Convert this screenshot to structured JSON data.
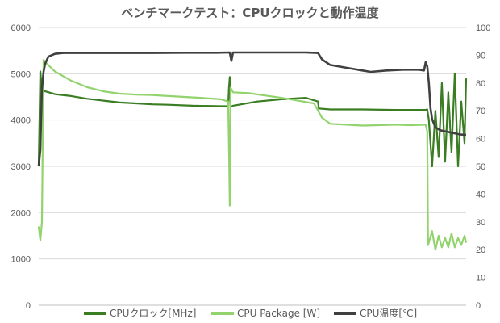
{
  "chart_data": {
    "type": "line",
    "title": "ベンチマークテスト：CPUクロックと動作温度",
    "y_left": {
      "lim": [
        0,
        6000
      ],
      "ticks": [
        "0",
        "1000",
        "2000",
        "3000",
        "4000",
        "5000",
        "6000"
      ]
    },
    "y_right": {
      "lim": [
        0,
        100
      ],
      "ticks": [
        "0",
        "10",
        "20",
        "30",
        "40",
        "50",
        "60",
        "70",
        "80",
        "90",
        "100"
      ]
    },
    "grid": true,
    "legend_position": "bottom",
    "series": [
      {
        "name": "CPUクロック[MHz]",
        "axis": "left",
        "color": "#3a7d22",
        "points": [
          [
            0,
            3000
          ],
          [
            2,
            5050
          ],
          [
            4,
            4650
          ],
          [
            8,
            4620
          ],
          [
            20,
            4560
          ],
          [
            40,
            4520
          ],
          [
            60,
            4460
          ],
          [
            80,
            4420
          ],
          [
            100,
            4380
          ],
          [
            120,
            4360
          ],
          [
            140,
            4340
          ],
          [
            160,
            4330
          ],
          [
            190,
            4310
          ],
          [
            225,
            4300
          ],
          [
            234,
            4300
          ],
          [
            235,
            4700
          ],
          [
            236,
            4930
          ],
          [
            237,
            4280
          ],
          [
            240,
            4310
          ],
          [
            270,
            4400
          ],
          [
            300,
            4450
          ],
          [
            330,
            4480
          ],
          [
            345,
            4400
          ],
          [
            346,
            4250
          ],
          [
            360,
            4230
          ],
          [
            400,
            4230
          ],
          [
            440,
            4220
          ],
          [
            478,
            4220
          ],
          [
            480,
            4230
          ],
          [
            482,
            4000
          ],
          [
            486,
            3000
          ],
          [
            490,
            4200
          ],
          [
            494,
            3200
          ],
          [
            498,
            4800
          ],
          [
            502,
            3100
          ],
          [
            506,
            4600
          ],
          [
            510,
            3300
          ],
          [
            514,
            5000
          ],
          [
            518,
            3000
          ],
          [
            522,
            4400
          ],
          [
            526,
            3500
          ],
          [
            528,
            4900
          ]
        ]
      },
      {
        "name": "CPU Package [W]",
        "axis": "left",
        "color": "#92d36e",
        "points": [
          [
            0,
            1700
          ],
          [
            2,
            1400
          ],
          [
            4,
            1800
          ],
          [
            6,
            5300
          ],
          [
            10,
            5220
          ],
          [
            20,
            5050
          ],
          [
            40,
            4850
          ],
          [
            60,
            4710
          ],
          [
            80,
            4620
          ],
          [
            100,
            4570
          ],
          [
            120,
            4550
          ],
          [
            140,
            4540
          ],
          [
            160,
            4520
          ],
          [
            180,
            4500
          ],
          [
            200,
            4480
          ],
          [
            225,
            4450
          ],
          [
            234,
            4400
          ],
          [
            235,
            3400
          ],
          [
            236,
            2150
          ],
          [
            237,
            4700
          ],
          [
            240,
            4600
          ],
          [
            260,
            4580
          ],
          [
            280,
            4530
          ],
          [
            300,
            4480
          ],
          [
            320,
            4420
          ],
          [
            340,
            4360
          ],
          [
            350,
            4050
          ],
          [
            360,
            3920
          ],
          [
            380,
            3900
          ],
          [
            400,
            3880
          ],
          [
            420,
            3890
          ],
          [
            440,
            3900
          ],
          [
            460,
            3890
          ],
          [
            478,
            3900
          ],
          [
            480,
            3750
          ],
          [
            481,
            1300
          ],
          [
            486,
            1600
          ],
          [
            490,
            1200
          ],
          [
            494,
            1500
          ],
          [
            498,
            1250
          ],
          [
            502,
            1450
          ],
          [
            506,
            1250
          ],
          [
            510,
            1550
          ],
          [
            514,
            1250
          ],
          [
            518,
            1450
          ],
          [
            522,
            1300
          ],
          [
            526,
            1500
          ],
          [
            528,
            1350
          ]
        ]
      },
      {
        "name": "CPU温度[℃]",
        "axis": "right",
        "color": "#404040",
        "points": [
          [
            0,
            50
          ],
          [
            2,
            56
          ],
          [
            4,
            78
          ],
          [
            6,
            84
          ],
          [
            8,
            87
          ],
          [
            12,
            89.5
          ],
          [
            20,
            90.5
          ],
          [
            30,
            90.8
          ],
          [
            60,
            90.8
          ],
          [
            100,
            90.8
          ],
          [
            140,
            90.8
          ],
          [
            180,
            90.9
          ],
          [
            220,
            90.9
          ],
          [
            236,
            91
          ],
          [
            238,
            88
          ],
          [
            240,
            91
          ],
          [
            280,
            91
          ],
          [
            300,
            91
          ],
          [
            330,
            91
          ],
          [
            345,
            90.8
          ],
          [
            350,
            88.5
          ],
          [
            360,
            86.5
          ],
          [
            380,
            85.5
          ],
          [
            400,
            84.5
          ],
          [
            410,
            84
          ],
          [
            430,
            84.5
          ],
          [
            450,
            84.8
          ],
          [
            470,
            84.8
          ],
          [
            476,
            84.5
          ],
          [
            478,
            87.5
          ],
          [
            480,
            86
          ],
          [
            482,
            80
          ],
          [
            484,
            71
          ],
          [
            486,
            67
          ],
          [
            490,
            64
          ],
          [
            496,
            63
          ],
          [
            504,
            62.5
          ],
          [
            512,
            62
          ],
          [
            520,
            61.5
          ],
          [
            528,
            61.3
          ]
        ]
      }
    ]
  }
}
